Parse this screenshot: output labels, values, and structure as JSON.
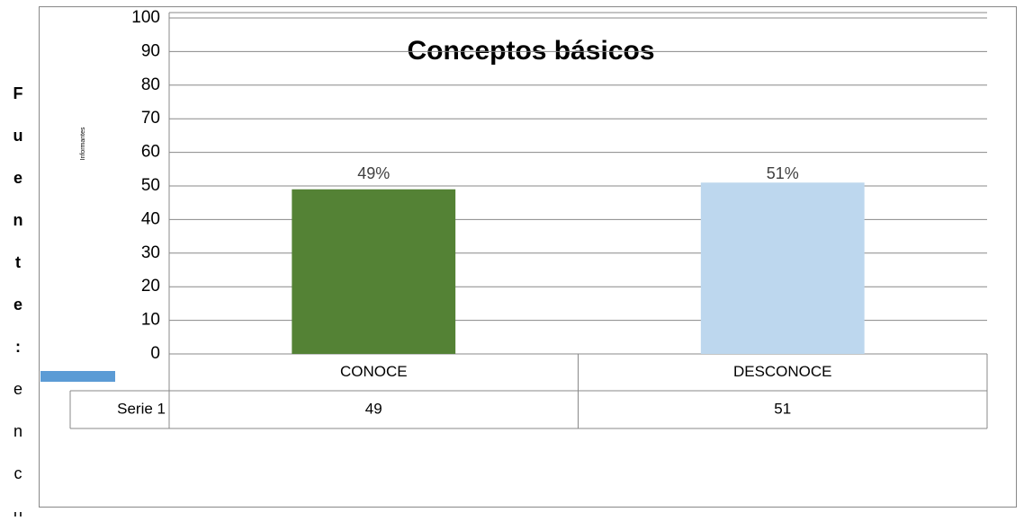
{
  "chart_data": {
    "type": "bar",
    "title": "Conceptos básicos",
    "y_label": "Informantes",
    "side_note": [
      "Fuente:",
      "encu"
    ],
    "categories": [
      "CONOCE",
      "DESCONOCE"
    ],
    "series": [
      {
        "name": "Serie 1",
        "colors": [
          "#548235",
          "#bdd7ee"
        ],
        "legend_color": "#5b9bd5",
        "values": [
          49,
          51
        ],
        "value_labels": [
          "49%",
          "51%"
        ]
      }
    ],
    "ylim": [
      0,
      100
    ],
    "yticks": [
      0,
      10,
      20,
      30,
      40,
      50,
      60,
      70,
      80,
      90,
      100
    ],
    "grid": true,
    "data_table": true
  }
}
